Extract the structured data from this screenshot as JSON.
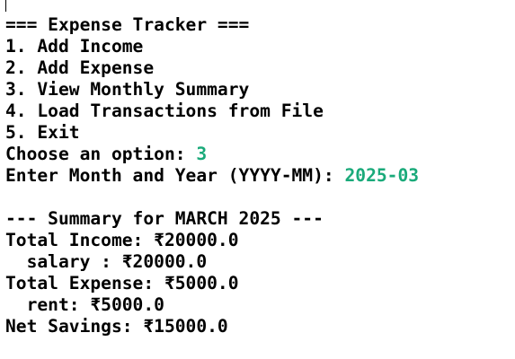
{
  "menu": {
    "title": "=== Expense Tracker ===",
    "options": [
      "1. Add Income",
      "2. Add Expense",
      "3. View Monthly Summary",
      "4. Load Transactions from File",
      "5. Exit"
    ]
  },
  "prompts": {
    "choose_label": "Choose an option: ",
    "choose_value": "3",
    "month_label": "Enter Month and Year (YYYY-MM): ",
    "month_value": "2025-03"
  },
  "summary": {
    "header": "--- Summary for MARCH 2025 ---",
    "total_income": "Total Income: ₹20000.0",
    "income_item": "  salary : ₹20000.0",
    "total_expense": "Total Expense: ₹5000.0",
    "expense_item": "  rent: ₹5000.0",
    "net_savings": "Net Savings: ₹15000.0"
  },
  "colors": {
    "background": "#ffffff",
    "text": "#000000",
    "user_input": "#1aaa7a"
  }
}
